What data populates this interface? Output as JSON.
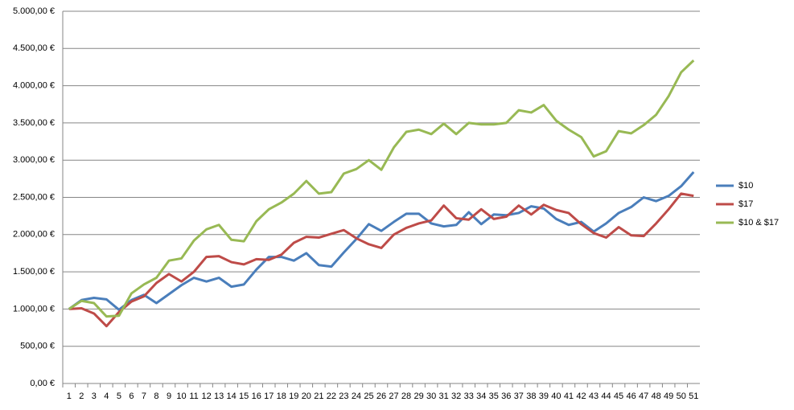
{
  "chart_data": {
    "type": "line",
    "categories": [
      1,
      2,
      3,
      4,
      5,
      6,
      7,
      8,
      9,
      10,
      11,
      12,
      13,
      14,
      15,
      16,
      17,
      18,
      19,
      20,
      21,
      22,
      23,
      24,
      25,
      26,
      27,
      28,
      29,
      30,
      31,
      32,
      33,
      34,
      35,
      36,
      37,
      38,
      39,
      40,
      41,
      42,
      43,
      44,
      45,
      46,
      47,
      48,
      49,
      50,
      51
    ],
    "series": [
      {
        "name": "$10",
        "color": "#4a7ebb",
        "values": [
          1000,
          1120,
          1150,
          1130,
          990,
          1120,
          1190,
          1080,
          1200,
          1320,
          1420,
          1370,
          1420,
          1300,
          1330,
          1530,
          1700,
          1700,
          1650,
          1750,
          1590,
          1570,
          1760,
          1940,
          2140,
          2050,
          2170,
          2280,
          2280,
          2150,
          2110,
          2130,
          2300,
          2140,
          2270,
          2260,
          2290,
          2380,
          2350,
          2210,
          2130,
          2170,
          2040,
          2150,
          2290,
          2370,
          2500,
          2450,
          2520,
          2650,
          2840
        ]
      },
      {
        "name": "$17",
        "color": "#be4b48",
        "values": [
          1000,
          1010,
          940,
          770,
          960,
          1100,
          1170,
          1350,
          1470,
          1370,
          1500,
          1700,
          1710,
          1630,
          1600,
          1670,
          1660,
          1730,
          1890,
          1970,
          1960,
          2010,
          2060,
          1950,
          1870,
          1820,
          2000,
          2090,
          2150,
          2190,
          2390,
          2220,
          2200,
          2340,
          2210,
          2240,
          2390,
          2270,
          2400,
          2330,
          2290,
          2140,
          2020,
          1960,
          2100,
          1990,
          1980,
          2150,
          2340,
          2550,
          2520
        ]
      },
      {
        "name": "$10 & $17",
        "color": "#98b954",
        "values": [
          1000,
          1110,
          1080,
          900,
          910,
          1210,
          1330,
          1420,
          1650,
          1680,
          1920,
          2070,
          2130,
          1930,
          1910,
          2180,
          2340,
          2430,
          2550,
          2720,
          2550,
          2570,
          2820,
          2880,
          3000,
          2870,
          3170,
          3380,
          3410,
          3350,
          3490,
          3350,
          3500,
          3480,
          3480,
          3500,
          3670,
          3640,
          3740,
          3530,
          3410,
          3310,
          3050,
          3120,
          3390,
          3360,
          3470,
          3610,
          3860,
          4180,
          4340
        ]
      }
    ],
    "ylim": [
      0,
      5000
    ],
    "yticks": [
      {
        "value": 0,
        "label": "0,00 €"
      },
      {
        "value": 500,
        "label": "500,00 €"
      },
      {
        "value": 1000,
        "label": "1.000,00 €"
      },
      {
        "value": 1500,
        "label": "1.500,00 €"
      },
      {
        "value": 2000,
        "label": "2.000,00 €"
      },
      {
        "value": 2500,
        "label": "2.500,00 €"
      },
      {
        "value": 3000,
        "label": "3.000,00 €"
      },
      {
        "value": 3500,
        "label": "3.500,00 €"
      },
      {
        "value": 4000,
        "label": "4.000,00 €"
      },
      {
        "value": 4500,
        "label": "4.500,00 €"
      },
      {
        "value": 5000,
        "label": "5.000,00 €"
      }
    ],
    "grid": true,
    "legend": "right"
  }
}
